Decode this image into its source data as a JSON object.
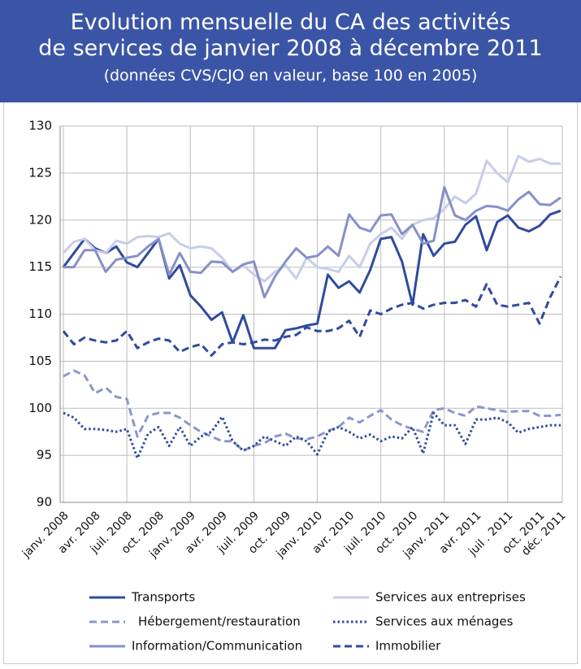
{
  "chart_data": {
    "type": "line",
    "title": [
      "Evolution mensuelle du CA des activités",
      "de services de janvier 2008 à décembre 2011"
    ],
    "subtitle": "(données CVS/CJO en valeur, base 100 en 2005)",
    "categories": [
      "janv. 2008",
      null,
      null,
      "avr. 2008",
      null,
      null,
      "juil. 2008",
      null,
      null,
      "oct. 2008",
      null,
      null,
      "janv. 2009",
      null,
      null,
      "avr. 2009",
      null,
      null,
      "juil. 2009",
      null,
      null,
      "oct. 2009",
      null,
      null,
      "janv. 2010",
      null,
      null,
      "avr. 2010",
      null,
      null,
      "juil. 2010",
      null,
      null,
      "oct. 2010",
      null,
      null,
      "janv. 2011",
      null,
      null,
      "avr. 2011",
      null,
      null,
      "juil . 2011",
      null,
      null,
      "oct. 2011",
      null,
      "déc. 2011"
    ],
    "ylim": [
      90,
      130
    ],
    "yticks": [
      90,
      95,
      100,
      105,
      110,
      115,
      120,
      125,
      130
    ],
    "grid": true,
    "series": [
      {
        "name": "Transports",
        "color": "#2f4b9e",
        "dash": "solid",
        "values": [
          115,
          116.5,
          118,
          117,
          116.5,
          117.2,
          115.5,
          115,
          116.5,
          118,
          113.8,
          115.2,
          112,
          110.8,
          109.4,
          110.2,
          107,
          109.9,
          106.4,
          106.4,
          106.4,
          108.3,
          108.5,
          108.8,
          109,
          114.2,
          112.8,
          113.5,
          112.3,
          114.7,
          118,
          118.2,
          115.6,
          111,
          118.5,
          116.2,
          117.5,
          117.7,
          119.5,
          120.4,
          116.8,
          119.8,
          120.5,
          119.2,
          118.8,
          119.4,
          120.6,
          121
        ]
      },
      {
        "name": "Services aux entreprises",
        "color": "#c8cde8",
        "dash": "solid",
        "values": [
          116.5,
          117.7,
          118,
          116.8,
          116.5,
          117.8,
          117.5,
          118.2,
          118.3,
          118.2,
          118.6,
          117.5,
          117,
          117.2,
          117,
          116,
          114.5,
          115.2,
          114.2,
          113.5,
          114.5,
          115.2,
          113.8,
          116,
          115,
          114.8,
          114.5,
          116.2,
          115,
          117.5,
          118.5,
          119.2,
          118,
          119.5,
          120,
          120.2,
          121.2,
          122.5,
          121.8,
          122.8,
          126.3,
          125,
          124,
          126.8,
          126.2,
          126.5,
          126,
          126
        ]
      },
      {
        "name": "Hébergement/restauration",
        "color": "#8c96cc",
        "dash": "dashed",
        "values": [
          103.4,
          104,
          103.5,
          101.6,
          102.2,
          101.2,
          101,
          97,
          99.2,
          99.5,
          99.5,
          99,
          98.2,
          97.5,
          97,
          96.5,
          96.5,
          95.5,
          96,
          96.3,
          97,
          97.3,
          96.8,
          96.7,
          97,
          97.6,
          98,
          99,
          98.5,
          99.2,
          99.8,
          98.8,
          98.2,
          97.8,
          97.5,
          99.8,
          100,
          99.5,
          99.2,
          100.2,
          100,
          99.8,
          99.6,
          99.7,
          99.7,
          99.2,
          99.2,
          99.3
        ]
      },
      {
        "name": "Services aux ménages",
        "color": "#2f4b9e",
        "dash": "dotted",
        "values": [
          99.5,
          99,
          97.8,
          97.8,
          97.7,
          97.5,
          97.8,
          94.7,
          97.3,
          98,
          96,
          98,
          96,
          97,
          97.5,
          99.1,
          96.5,
          95.5,
          96,
          97,
          96.5,
          96,
          97,
          96.5,
          95.1,
          97.5,
          98,
          97.5,
          96.8,
          97.2,
          96.5,
          97,
          96.8,
          98,
          95.2,
          99.5,
          98.2,
          98.2,
          96.2,
          98.8,
          98.8,
          99,
          98.5,
          97.4,
          97.8,
          98,
          98.2,
          98.2
        ]
      },
      {
        "name": "Information/Communication",
        "color": "#8790c8",
        "dash": "solid",
        "values": [
          115,
          115,
          116.8,
          116.8,
          114.5,
          115.8,
          116,
          116.2,
          117.2,
          118,
          114.2,
          116.5,
          114.5,
          114.4,
          115.6,
          115.5,
          114.5,
          115.3,
          115.6,
          111.8,
          114,
          115.6,
          117,
          116,
          116.2,
          117.2,
          116.2,
          120.6,
          119.2,
          118.8,
          120.5,
          120.6,
          118.5,
          119.5,
          117.5,
          117.8,
          123.5,
          120.5,
          120,
          121,
          121.5,
          121.4,
          121,
          122.2,
          123,
          121.7,
          121.6,
          122.4
        ]
      },
      {
        "name": "Immobilier",
        "color": "#2f4b9e",
        "dash": "dashed",
        "values": [
          108.2,
          106.8,
          107.5,
          107.2,
          107,
          107.2,
          108.2,
          106.4,
          107,
          107.4,
          107.2,
          106,
          106.5,
          106.8,
          105.6,
          106.8,
          107,
          106.8,
          107,
          107.3,
          107.2,
          107.6,
          107.8,
          108.6,
          108.2,
          108.2,
          108.5,
          109.3,
          107.6,
          110.4,
          110,
          110.6,
          111,
          111.2,
          110.6,
          111,
          111.2,
          111.2,
          111.5,
          110.8,
          113.2,
          111,
          110.8,
          111,
          111.2,
          109,
          111.8,
          114
        ]
      }
    ]
  }
}
